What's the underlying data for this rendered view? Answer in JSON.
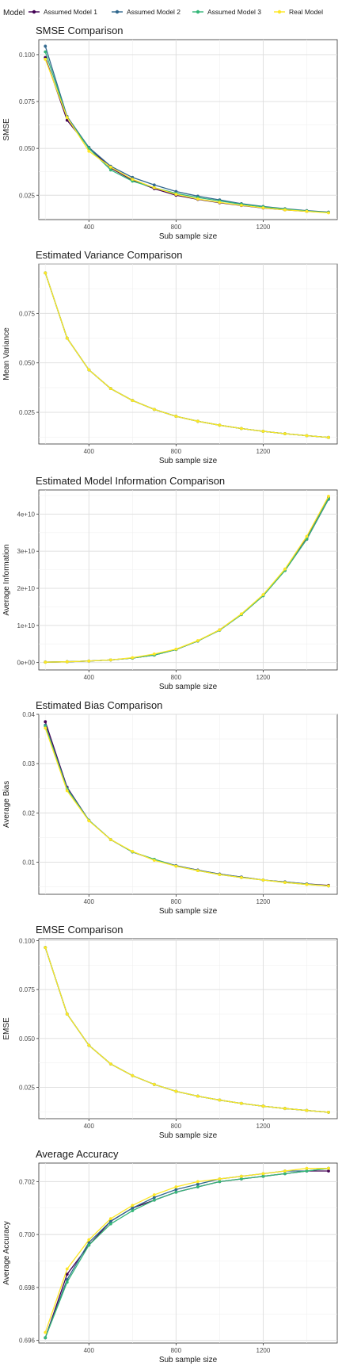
{
  "legend": {
    "title": "Model",
    "entries": [
      {
        "name": "Assumed Model 1",
        "color": "#440154"
      },
      {
        "name": "Assumed Model 2",
        "color": "#31688e"
      },
      {
        "name": "Assumed Model 3",
        "color": "#35b779"
      },
      {
        "name": "Real Model",
        "color": "#fde725"
      }
    ]
  },
  "chart_data": [
    {
      "type": "line",
      "title": "SMSE Comparison",
      "xlabel": "Sub sample size",
      "ylabel": "SMSE",
      "xlim": [
        170,
        1540
      ],
      "ylim": [
        0.012,
        0.108
      ],
      "xticks": [
        400,
        800,
        1200
      ],
      "yticks": [
        0.025,
        0.05,
        0.075,
        0.1
      ],
      "ytick_labels": [
        "0.025",
        "0.050",
        "0.075",
        "0.100"
      ],
      "x": [
        200,
        300,
        400,
        500,
        600,
        700,
        800,
        900,
        1000,
        1100,
        1200,
        1300,
        1400,
        1500
      ],
      "series": [
        {
          "name": "Assumed Model 1",
          "values": [
            0.0985,
            0.065,
            0.0505,
            0.0395,
            0.033,
            0.0285,
            0.025,
            0.0228,
            0.021,
            0.0195,
            0.0182,
            0.0172,
            0.0164,
            0.0158
          ]
        },
        {
          "name": "Assumed Model 2",
          "values": [
            0.1045,
            0.067,
            0.0505,
            0.0405,
            0.0345,
            0.0305,
            0.027,
            0.0245,
            0.0225,
            0.0205,
            0.019,
            0.0178,
            0.0168,
            0.016
          ]
        },
        {
          "name": "Assumed Model 3",
          "values": [
            0.1015,
            0.0665,
            0.05,
            0.0385,
            0.0325,
            0.029,
            0.026,
            0.0238,
            0.022,
            0.0202,
            0.0188,
            0.0176,
            0.0166,
            0.0158
          ]
        },
        {
          "name": "Real Model",
          "values": [
            0.0975,
            0.0665,
            0.0485,
            0.04,
            0.0335,
            0.029,
            0.0255,
            0.023,
            0.0212,
            0.0196,
            0.0183,
            0.0172,
            0.0164,
            0.0156
          ]
        }
      ]
    },
    {
      "type": "line",
      "title": "Estimated Variance Comparison",
      "xlabel": "Sub sample size",
      "ylabel": "Mean Variance",
      "xlim": [
        170,
        1540
      ],
      "ylim": [
        0.009,
        0.1
      ],
      "xticks": [
        400,
        800,
        1200
      ],
      "yticks": [
        0.025,
        0.05,
        0.075
      ],
      "ytick_labels": [
        "0.025",
        "0.050",
        "0.075"
      ],
      "x": [
        200,
        300,
        400,
        500,
        600,
        700,
        800,
        900,
        1000,
        1100,
        1200,
        1300,
        1400,
        1500
      ],
      "series": [
        {
          "name": "Assumed Model 1",
          "values": [
            0.0955,
            0.0625,
            0.0465,
            0.037,
            0.031,
            0.0265,
            0.023,
            0.0205,
            0.0185,
            0.0168,
            0.0154,
            0.0142,
            0.0132,
            0.0123
          ]
        },
        {
          "name": "Assumed Model 2",
          "values": [
            0.0955,
            0.0625,
            0.0465,
            0.037,
            0.031,
            0.0265,
            0.023,
            0.0205,
            0.0185,
            0.0168,
            0.0154,
            0.0142,
            0.0132,
            0.0123
          ]
        },
        {
          "name": "Assumed Model 3",
          "values": [
            0.0955,
            0.0625,
            0.0465,
            0.037,
            0.031,
            0.0265,
            0.023,
            0.0205,
            0.0185,
            0.0168,
            0.0154,
            0.0142,
            0.0132,
            0.0123
          ]
        },
        {
          "name": "Real Model",
          "values": [
            0.0955,
            0.0625,
            0.0465,
            0.037,
            0.031,
            0.0265,
            0.023,
            0.0205,
            0.0185,
            0.0168,
            0.0154,
            0.0142,
            0.0132,
            0.0123
          ]
        }
      ]
    },
    {
      "type": "line",
      "title": "Estimated Model Information Comparison",
      "xlabel": "Sub sample size",
      "ylabel": "Average Information",
      "xlim": [
        170,
        1540
      ],
      "ylim": [
        -2000000000,
        46500000000
      ],
      "xticks": [
        400,
        800,
        1200
      ],
      "yticks": [
        0,
        10000000000,
        20000000000,
        30000000000,
        40000000000
      ],
      "ytick_labels": [
        "0e+00",
        "1e+10",
        "2e+10",
        "3e+10",
        "4e+10"
      ],
      "x": [
        200,
        300,
        400,
        500,
        600,
        700,
        800,
        900,
        1000,
        1100,
        1200,
        1300,
        1400,
        1500
      ],
      "series": [
        {
          "name": "Assumed Model 1",
          "values": [
            100000000,
            200000000,
            400000000,
            700000000,
            1200000000,
            2000000000,
            3500000000,
            5800000000,
            8800000000,
            13000000000,
            18200000000,
            25000000000,
            33500000000,
            44500000000
          ]
        },
        {
          "name": "Assumed Model 2",
          "values": [
            100000000,
            200000000,
            400000000,
            700000000,
            1200000000,
            2000000000,
            3500000000,
            5800000000,
            8700000000,
            12900000000,
            18000000000,
            24800000000,
            33200000000,
            44000000000
          ]
        },
        {
          "name": "Assumed Model 3",
          "values": [
            100000000,
            200000000,
            400000000,
            700000000,
            1200000000,
            2000000000,
            3500000000,
            5800000000,
            8700000000,
            12900000000,
            18000000000,
            24800000000,
            33300000000,
            44200000000
          ]
        },
        {
          "name": "Real Model",
          "values": [
            100000000,
            200000000,
            400000000,
            700000000,
            1300000000,
            2300000000,
            3600000000,
            5900000000,
            8800000000,
            13100000000,
            18300000000,
            25200000000,
            34000000000,
            44800000000
          ]
        }
      ]
    },
    {
      "type": "line",
      "title": "Estimated Bias Comparison",
      "xlabel": "Sub sample size",
      "ylabel": "Average Bias",
      "xlim": [
        170,
        1540
      ],
      "ylim": [
        0.0035,
        0.04
      ],
      "xticks": [
        400,
        800,
        1200
      ],
      "yticks": [
        0.01,
        0.02,
        0.03,
        0.04
      ],
      "ytick_labels": [
        "0.01",
        "0.02",
        "0.03",
        "0.04"
      ],
      "x": [
        200,
        300,
        400,
        500,
        600,
        700,
        800,
        900,
        1000,
        1100,
        1200,
        1300,
        1400,
        1500
      ],
      "series": [
        {
          "name": "Assumed Model 1",
          "values": [
            0.0385,
            0.0252,
            0.0185,
            0.0146,
            0.0121,
            0.0105,
            0.0093,
            0.0084,
            0.0076,
            0.007,
            0.0064,
            0.006,
            0.0056,
            0.0053
          ]
        },
        {
          "name": "Assumed Model 2",
          "values": [
            0.0378,
            0.025,
            0.0185,
            0.0146,
            0.0121,
            0.0106,
            0.0093,
            0.0084,
            0.0076,
            0.007,
            0.0064,
            0.006,
            0.0056,
            0.0052
          ]
        },
        {
          "name": "Assumed Model 3",
          "values": [
            0.0376,
            0.0248,
            0.0185,
            0.0146,
            0.0121,
            0.0106,
            0.0092,
            0.0083,
            0.0075,
            0.0069,
            0.0064,
            0.0059,
            0.0055,
            0.0052
          ]
        },
        {
          "name": "Real Model",
          "values": [
            0.0372,
            0.0245,
            0.0184,
            0.0146,
            0.0122,
            0.0104,
            0.0092,
            0.0083,
            0.0075,
            0.0069,
            0.0064,
            0.0059,
            0.0055,
            0.0052
          ]
        }
      ]
    },
    {
      "type": "line",
      "title": "EMSE Comparison",
      "xlabel": "Sub sample size",
      "ylabel": "EMSE",
      "xlim": [
        170,
        1540
      ],
      "ylim": [
        0.009,
        0.101
      ],
      "xticks": [
        400,
        800,
        1200
      ],
      "yticks": [
        0.025,
        0.05,
        0.075,
        0.1
      ],
      "ytick_labels": [
        "0.025",
        "0.050",
        "0.075",
        "0.100"
      ],
      "x": [
        200,
        300,
        400,
        500,
        600,
        700,
        800,
        900,
        1000,
        1100,
        1200,
        1300,
        1400,
        1500
      ],
      "series": [
        {
          "name": "Assumed Model 1",
          "values": [
            0.0965,
            0.0625,
            0.0465,
            0.037,
            0.031,
            0.0265,
            0.023,
            0.0205,
            0.0185,
            0.0168,
            0.0154,
            0.0142,
            0.0132,
            0.0123
          ]
        },
        {
          "name": "Assumed Model 2",
          "values": [
            0.0965,
            0.0625,
            0.0465,
            0.037,
            0.031,
            0.0265,
            0.023,
            0.0205,
            0.0185,
            0.0168,
            0.0154,
            0.0142,
            0.0132,
            0.0123
          ]
        },
        {
          "name": "Assumed Model 3",
          "values": [
            0.0965,
            0.0625,
            0.0465,
            0.037,
            0.031,
            0.0265,
            0.023,
            0.0205,
            0.0185,
            0.0168,
            0.0154,
            0.0142,
            0.0132,
            0.0123
          ]
        },
        {
          "name": "Real Model",
          "values": [
            0.0965,
            0.0625,
            0.0465,
            0.037,
            0.031,
            0.0265,
            0.023,
            0.0205,
            0.0185,
            0.0168,
            0.0154,
            0.0142,
            0.0132,
            0.0123
          ]
        }
      ]
    },
    {
      "type": "line",
      "title": "Average Accuracy",
      "xlabel": "Sub sample size",
      "ylabel": "Average Accuracy",
      "xlim": [
        170,
        1540
      ],
      "ylim": [
        0.6959,
        0.7027
      ],
      "xticks": [
        400,
        800,
        1200
      ],
      "yticks": [
        0.696,
        0.698,
        0.7,
        0.702
      ],
      "ytick_labels": [
        "0.696",
        "0.698",
        "0.700",
        "0.702"
      ],
      "x": [
        200,
        300,
        400,
        500,
        600,
        700,
        800,
        900,
        1000,
        1100,
        1200,
        1300,
        1400,
        1500
      ],
      "series": [
        {
          "name": "Assumed Model 1",
          "values": [
            0.6961,
            0.6985,
            0.6996,
            0.7005,
            0.701,
            0.7013,
            0.7016,
            0.7018,
            0.702,
            0.7021,
            0.7022,
            0.7023,
            0.7024,
            0.7024
          ]
        },
        {
          "name": "Assumed Model 2",
          "values": [
            0.6961,
            0.6983,
            0.6997,
            0.7005,
            0.701,
            0.7014,
            0.7017,
            0.7019,
            0.7021,
            0.7022,
            0.7023,
            0.7024,
            0.7024,
            0.7025
          ]
        },
        {
          "name": "Assumed Model 3",
          "values": [
            0.6961,
            0.6982,
            0.6996,
            0.7004,
            0.7009,
            0.7013,
            0.7016,
            0.7018,
            0.702,
            0.7021,
            0.7022,
            0.7023,
            0.7024,
            0.7025
          ]
        },
        {
          "name": "Real Model",
          "values": [
            0.6963,
            0.6987,
            0.6998,
            0.7006,
            0.7011,
            0.7015,
            0.7018,
            0.702,
            0.7021,
            0.7022,
            0.7023,
            0.7024,
            0.7025,
            0.7025
          ]
        }
      ]
    }
  ]
}
